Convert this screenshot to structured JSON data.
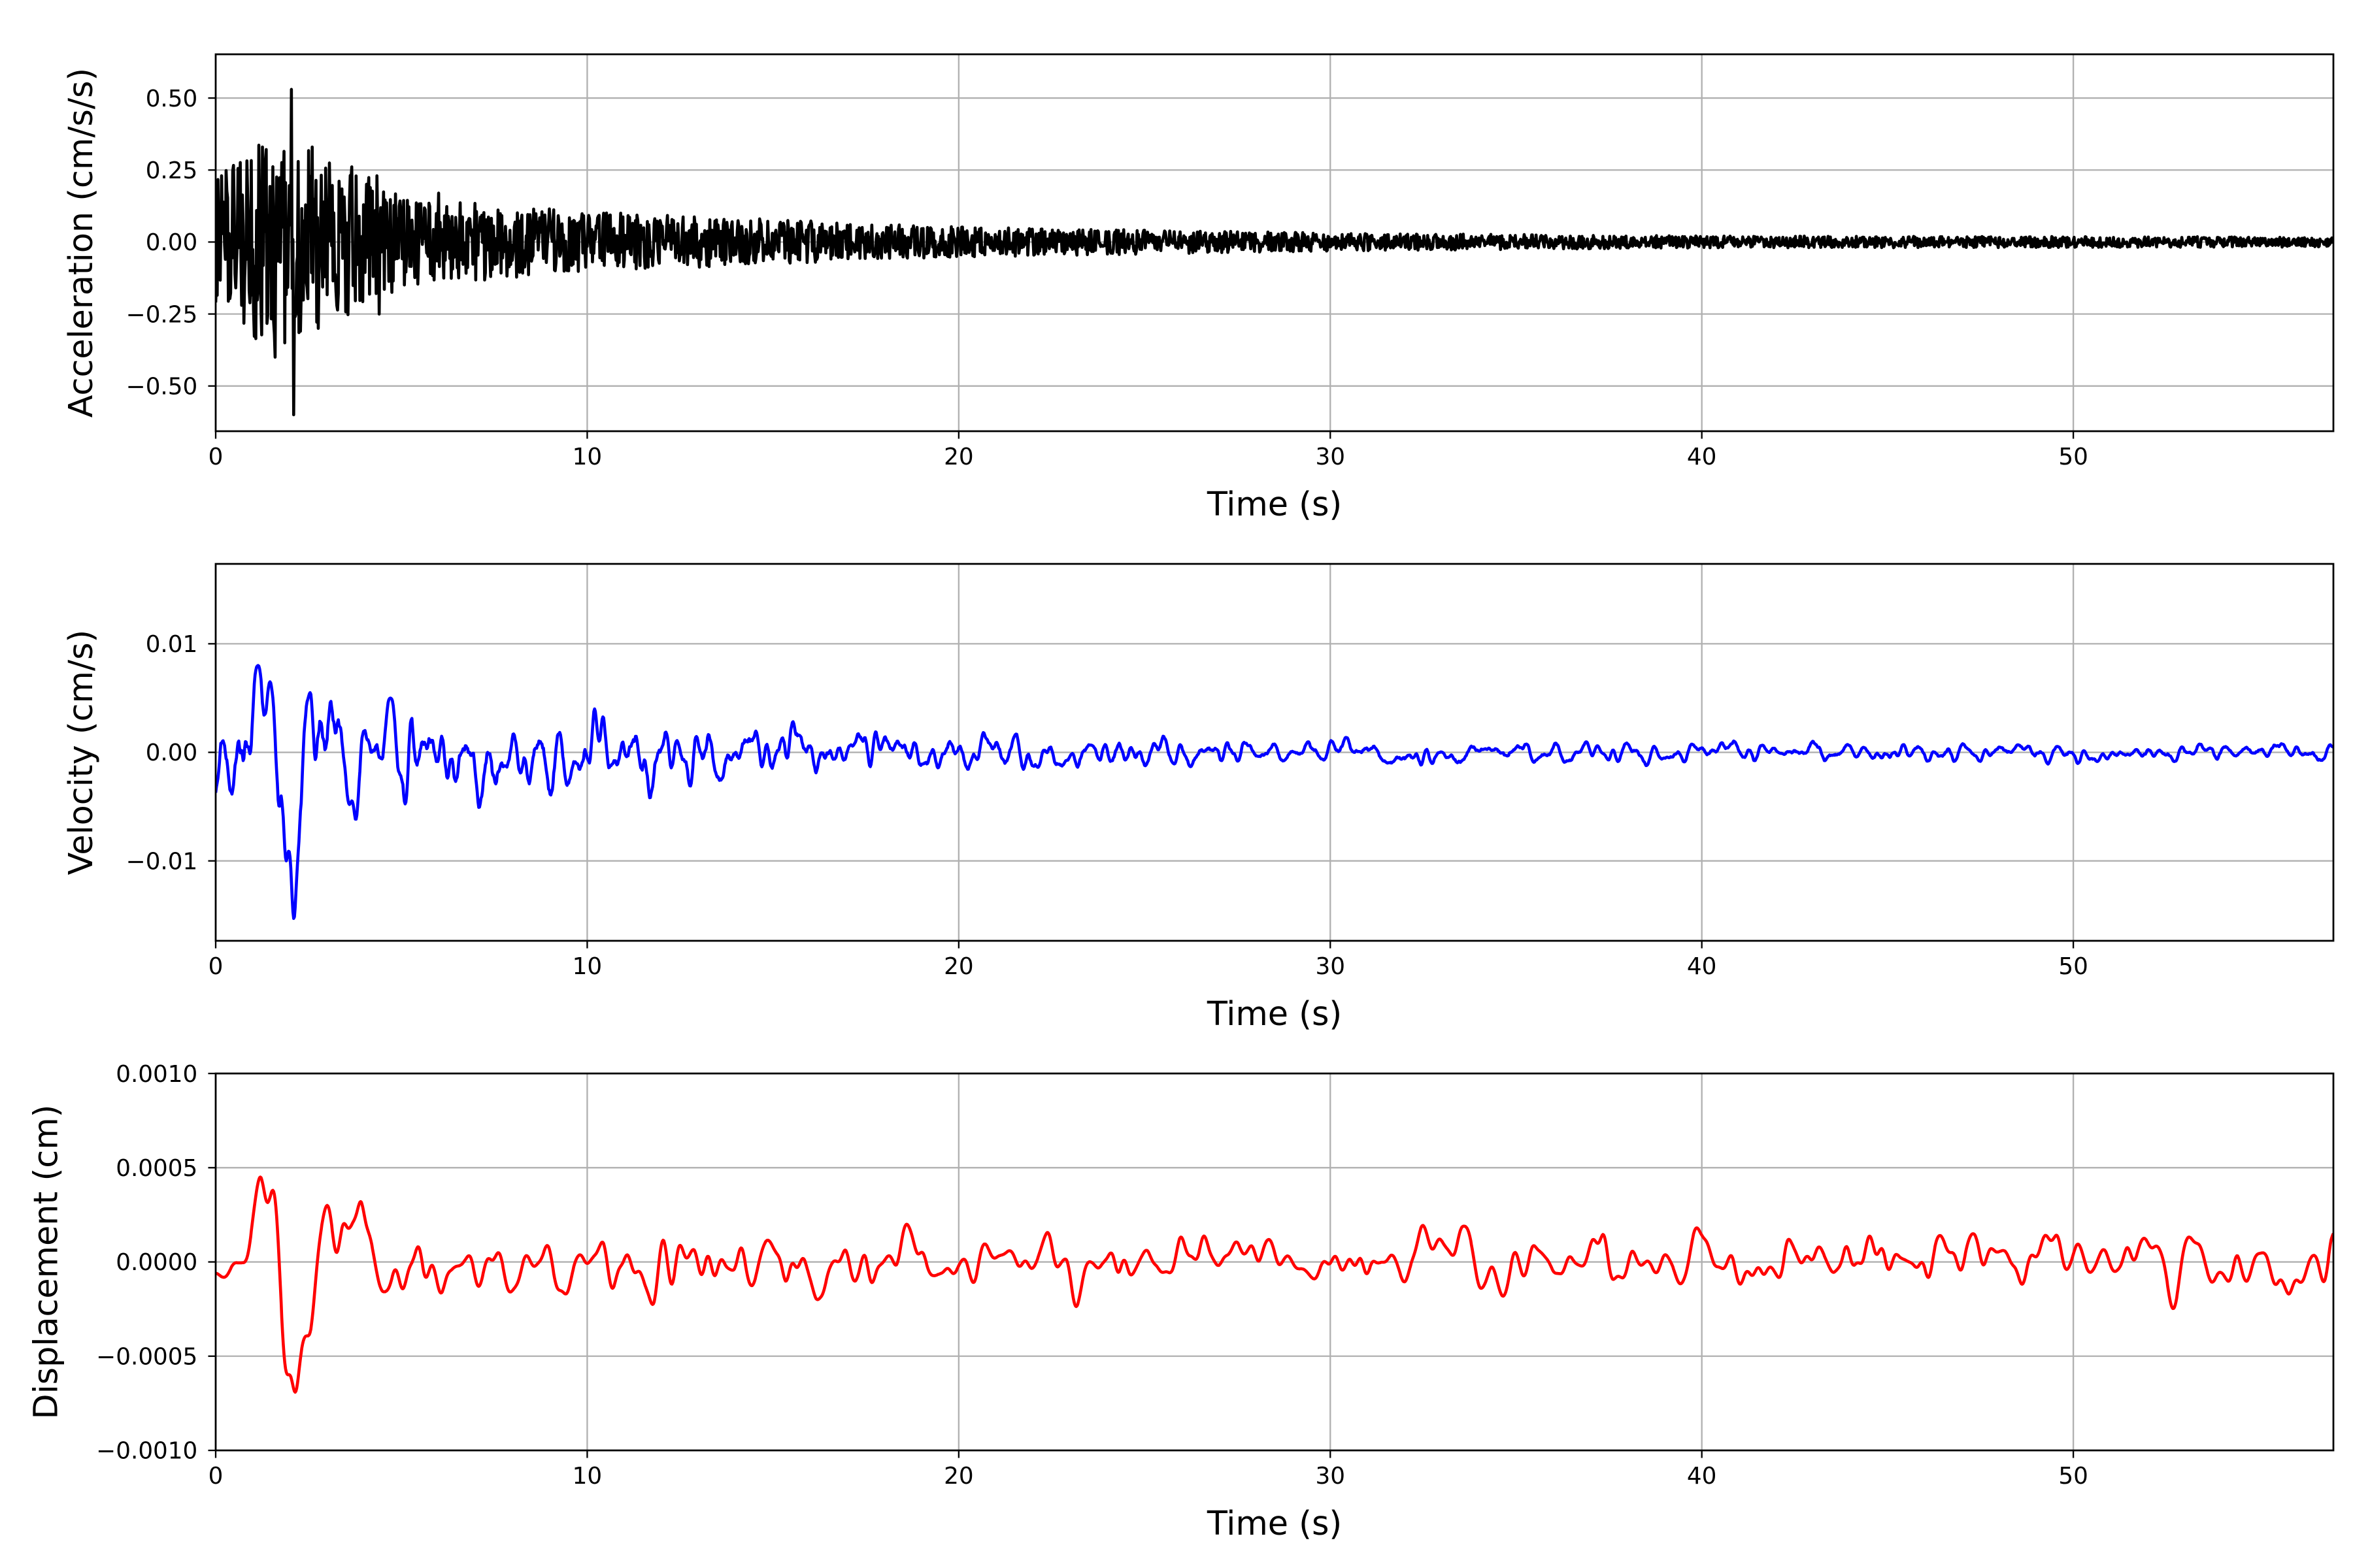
{
  "chart_data": [
    {
      "type": "line",
      "ylabel": "Acceleration (cm/s/s)",
      "xlabel": "Time (s)",
      "xlim": [
        0,
        57
      ],
      "ylim": [
        -0.657,
        0.652
      ],
      "xticks": [
        0,
        10,
        20,
        30,
        40,
        50
      ],
      "xtick_labels": [
        "0",
        "10",
        "20",
        "30",
        "40",
        "50"
      ],
      "yticks": [
        0.5,
        0.25,
        0,
        -0.25,
        -0.5
      ],
      "ytick_labels": [
        "0.50",
        "0.25",
        "0.00",
        "−0.25",
        "−0.50"
      ],
      "grid": true,
      "color": "#000000",
      "series_name": "acceleration",
      "envelope": [
        [
          0,
          0.12
        ],
        [
          1,
          0.2
        ],
        [
          3,
          0.18
        ],
        [
          5,
          0.09
        ],
        [
          10,
          0.06
        ],
        [
          20,
          0.03
        ],
        [
          30,
          0.018
        ],
        [
          40,
          0.012
        ],
        [
          57,
          0.01
        ]
      ],
      "smoothing": 0,
      "peaks": [
        [
          2.05,
          0.53
        ],
        [
          2.1,
          -0.6
        ],
        [
          1.6,
          -0.4
        ],
        [
          1.25,
          0.33
        ],
        [
          2.6,
          0.33
        ],
        [
          2.75,
          -0.3
        ],
        [
          4.35,
          0.23
        ],
        [
          4.4,
          -0.25
        ],
        [
          1.85,
          -0.35
        ],
        [
          0.7,
          -0.22
        ],
        [
          6.0,
          0.17
        ]
      ],
      "seed": 11
    },
    {
      "type": "line",
      "ylabel": "Velocity (cm/s)",
      "xlabel": "Time (s)",
      "xlim": [
        0,
        57
      ],
      "ylim": [
        -0.01736,
        0.01736
      ],
      "xticks": [
        0,
        10,
        20,
        30,
        40,
        50
      ],
      "xtick_labels": [
        "0",
        "10",
        "20",
        "30",
        "40",
        "50"
      ],
      "yticks": [
        0.01,
        0,
        -0.01
      ],
      "ytick_labels": [
        "0.01",
        "0.00",
        "−0.01"
      ],
      "grid": true,
      "color": "#0000ff",
      "series_name": "velocity",
      "envelope": [
        [
          0,
          0.0015
        ],
        [
          1,
          0.003
        ],
        [
          3,
          0.003
        ],
        [
          5,
          0.0022
        ],
        [
          10,
          0.0016
        ],
        [
          20,
          0.0008
        ],
        [
          30,
          0.0005
        ],
        [
          57,
          0.0004
        ]
      ],
      "smoothing": 2,
      "peaks": [
        [
          1.15,
          0.008
        ],
        [
          2.1,
          -0.0158
        ],
        [
          1.9,
          -0.01
        ],
        [
          1.45,
          0.0065
        ],
        [
          2.55,
          0.0055
        ],
        [
          3.6,
          -0.0048
        ],
        [
          4.7,
          0.005
        ],
        [
          10.2,
          0.004
        ]
      ],
      "seed": 23
    },
    {
      "type": "line",
      "ylabel": "Displacement (cm)",
      "xlabel": "Time (s)",
      "xlim": [
        0,
        57
      ],
      "ylim": [
        -0.001,
        0.001
      ],
      "xticks": [
        0,
        10,
        20,
        30,
        40,
        50
      ],
      "xtick_labels": [
        "0",
        "10",
        "20",
        "30",
        "40",
        "50"
      ],
      "yticks": [
        0.001,
        0.0005,
        0,
        -0.0005,
        -0.001
      ],
      "ytick_labels": [
        "0.0010",
        "0.0005",
        "0.0000",
        "−0.0005",
        "−0.0010"
      ],
      "grid": true,
      "color": "#ff0000",
      "series_name": "displacement",
      "envelope": [
        [
          0,
          4e-05
        ],
        [
          3,
          0.0001
        ],
        [
          6,
          9e-05
        ],
        [
          20,
          7e-05
        ],
        [
          57,
          7e-05
        ]
      ],
      "smoothing": 6,
      "peaks": [
        [
          1.2,
          0.00045
        ],
        [
          1.6,
          0.00046
        ],
        [
          2.1,
          -0.00092
        ],
        [
          1.95,
          -0.0006
        ],
        [
          2.5,
          -0.0004
        ],
        [
          3.0,
          0.0003
        ],
        [
          3.9,
          0.00032
        ],
        [
          18.6,
          0.0002
        ],
        [
          33.6,
          0.00019
        ],
        [
          47.3,
          0.00015
        ],
        [
          55.8,
          -0.00017
        ],
        [
          16.2,
          -0.0002
        ]
      ],
      "seed": 37
    }
  ]
}
